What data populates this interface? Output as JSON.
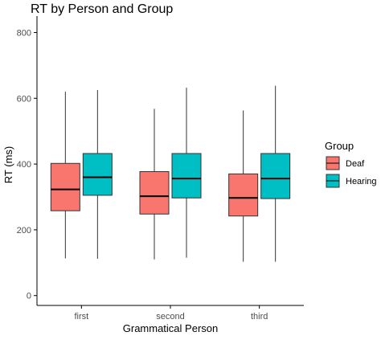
{
  "chart_data": {
    "type": "boxplot",
    "title": "RT by Person and Group",
    "xlabel": "Grammatical Person",
    "ylabel": "RT (ms)",
    "categories": [
      "first",
      "second",
      "third"
    ],
    "yticks": [
      0,
      200,
      400,
      600,
      800
    ],
    "ylim": [
      -30,
      850
    ],
    "grid": false,
    "legend": {
      "title": "Group",
      "placement": "right",
      "entries": [
        "Deaf",
        "Hearing"
      ]
    },
    "series": [
      {
        "name": "Deaf",
        "color": "#F8766D",
        "boxes": [
          {
            "min": 113,
            "q1": 258,
            "median": 323,
            "q3": 402,
            "max": 620
          },
          {
            "min": 110,
            "q1": 248,
            "median": 302,
            "q3": 377,
            "max": 568
          },
          {
            "min": 103,
            "q1": 242,
            "median": 297,
            "q3": 370,
            "max": 563
          }
        ]
      },
      {
        "name": "Hearing",
        "color": "#00BFC4",
        "boxes": [
          {
            "min": 112,
            "q1": 305,
            "median": 360,
            "q3": 432,
            "max": 625
          },
          {
            "min": 115,
            "q1": 297,
            "median": 356,
            "q3": 432,
            "max": 632
          },
          {
            "min": 103,
            "q1": 295,
            "median": 356,
            "q3": 432,
            "max": 638
          }
        ]
      }
    ]
  }
}
